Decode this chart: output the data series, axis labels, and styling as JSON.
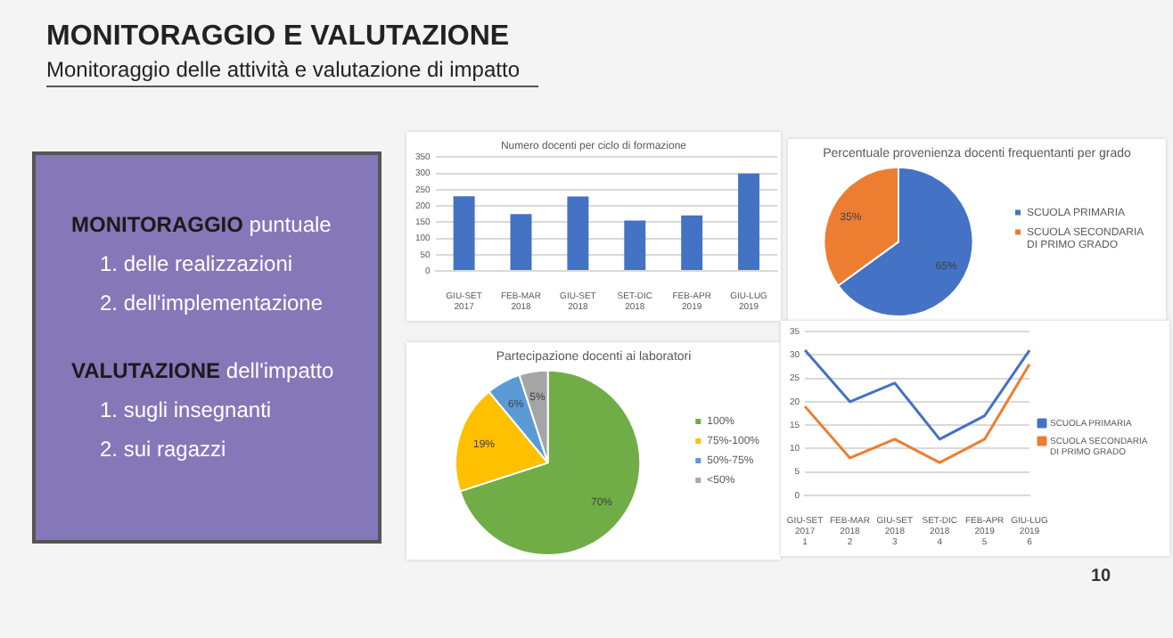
{
  "chart_data": [
    {
      "type": "other",
      "title": "MONITORAGGIO E VALUTAZIONE",
      "subtitle": "Monitoraggio delle attività e valutazione di impatto",
      "annotations": [
        "MONITORAGGIO puntuale",
        "1.   delle realizzazioni",
        "2.   dell'implementazione",
        "VALUTAZIONE dell'impatto",
        "1.   sugli insegnanti",
        "2.   sui ragazzi",
        "10"
      ]
    },
    {
      "type": "bar",
      "title": "Numero docenti per ciclo di formazione",
      "categories": [
        "GIU-SET 2017",
        "FEB-MAR 2018",
        "GIU-SET 2018",
        "SET-DIC 2018",
        "FEB-APR 2019",
        "GIU-LUG 2019"
      ],
      "values": [
        230,
        175,
        229,
        155,
        171,
        300
      ],
      "color": "#4472c4",
      "ylim": [
        0,
        350
      ],
      "yticks": [
        0,
        50,
        100,
        150,
        200,
        250,
        300,
        350
      ],
      "grid": "y"
    },
    {
      "type": "pie",
      "title": "Percentuale provenienza docenti frequentanti per grado",
      "categories": [
        "SCUOLA PRIMARIA",
        "SCUOLA SECONDARIA DI PRIMO GRADO"
      ],
      "values": [
        65,
        35
      ],
      "colors": [
        "#4472c4",
        "#ed7d31"
      ],
      "value_labels": [
        "65%",
        "35%"
      ],
      "legend": "right"
    },
    {
      "type": "pie",
      "title": "Partecipazione docenti ai laboratori",
      "categories": [
        "100%",
        "75%-100%",
        "50%-75%",
        "<50%"
      ],
      "values": [
        70,
        19,
        6,
        5
      ],
      "colors": [
        "#70ad47",
        "#ffc000",
        "#5b9bd5",
        "#a5a5a5"
      ],
      "value_labels": [
        "70%",
        "19%",
        "6%",
        "5%"
      ],
      "legend": "right"
    },
    {
      "type": "line",
      "categories": [
        "GIU-SET\n2017\n1",
        "FEB-MAR\n2018\n2",
        "GIU-SET\n2018\n3",
        "SET-DIC\n2018\n4",
        "FEB-APR\n2019\n5",
        "GIU-LUG\n2019\n6"
      ],
      "series": [
        {
          "name": "SCUOLA PRIMARIA",
          "color": "#4472c4",
          "values": [
            31,
            20,
            24,
            12,
            17,
            31
          ]
        },
        {
          "name": "SCUOLA SECONDARIA DI PRIMO GRADO",
          "color": "#ed7d31",
          "values": [
            19,
            8,
            12,
            7,
            12,
            28
          ]
        }
      ],
      "ylim": [
        0,
        35
      ],
      "yticks": [
        0,
        5,
        10,
        15,
        20,
        25,
        30,
        35
      ],
      "grid": "y",
      "legend": "right"
    }
  ]
}
